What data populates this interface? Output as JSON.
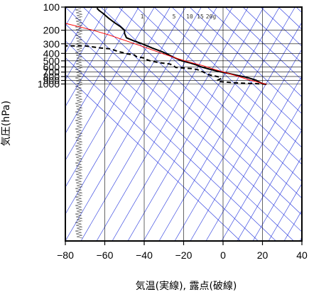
{
  "chart_data": {
    "type": "line",
    "title": "",
    "xlabel": "気温(実線), 露点(破線)",
    "ylabel": "気圧(hPa)",
    "xlim": [
      -80,
      40
    ],
    "ylim": [
      1050,
      100
    ],
    "y_scale": "log",
    "x_ticks": [
      -80,
      -60,
      -40,
      -20,
      0,
      20,
      40
    ],
    "x_tick_labels": [
      "−80",
      "−60",
      "−40",
      "−20",
      "0",
      "20",
      "40"
    ],
    "y_ticks": [
      100,
      200,
      300,
      400,
      500,
      600,
      700,
      800,
      900,
      1000
    ],
    "y_tick_labels": [
      "100",
      "200",
      "300",
      "400",
      "500",
      "600",
      "700",
      "800",
      "900",
      "1000"
    ],
    "mixing_ratio_labels": [
      "1",
      "5",
      "10",
      "15",
      "20g"
    ],
    "mixing_ratio_values": [
      1,
      5,
      10,
      15,
      20
    ],
    "colors": {
      "temperature": "#000000",
      "dewpoint": "#000000",
      "parcel": "#ff0000",
      "background_lines": "#2233dd"
    },
    "series": [
      {
        "name": "",
        "style": "solid",
        "points": [
          [
            22,
            1010
          ],
          [
            20,
            990
          ],
          [
            19,
            960
          ],
          [
            18,
            930
          ],
          [
            17,
            900
          ],
          [
            16,
            880
          ],
          [
            14,
            850
          ],
          [
            12,
            820
          ],
          [
            8,
            780
          ],
          [
            3,
            730
          ],
          [
            -2,
            690
          ],
          [
            -7,
            640
          ],
          [
            -11,
            600
          ],
          [
            -14,
            560
          ],
          [
            -17,
            530
          ],
          [
            -21,
            500
          ],
          [
            -25,
            450
          ],
          [
            -29,
            400
          ],
          [
            -31,
            380
          ],
          [
            -36,
            340
          ],
          [
            -41,
            300
          ],
          [
            -46,
            270
          ],
          [
            -49,
            250
          ],
          [
            -50,
            220
          ],
          [
            -50,
            200
          ],
          [
            -52,
            180
          ],
          [
            -55,
            160
          ],
          [
            -58,
            140
          ],
          [
            -61,
            120
          ],
          [
            -63,
            110
          ],
          [
            -64,
            103
          ]
        ]
      },
      {
        "name": "",
        "style": "dashed",
        "points": [
          [
            22,
            1010
          ],
          [
            20,
            1000
          ],
          [
            16,
            990
          ],
          [
            11,
            980
          ],
          [
            5,
            960
          ],
          [
            -2,
            930
          ],
          [
            -3,
            900
          ],
          [
            -1,
            850
          ],
          [
            -2,
            810
          ],
          [
            -3,
            800
          ],
          [
            -7,
            760
          ],
          [
            -10,
            700
          ],
          [
            -13,
            650
          ],
          [
            -16,
            630
          ],
          [
            -20,
            620
          ],
          [
            -24,
            610
          ],
          [
            -25,
            580
          ],
          [
            -27,
            550
          ],
          [
            -32,
            530
          ],
          [
            -37,
            500
          ],
          [
            -39,
            480
          ],
          [
            -40,
            460
          ],
          [
            -44,
            440
          ],
          [
            -45,
            420
          ],
          [
            -50,
            400
          ],
          [
            -51,
            390
          ],
          [
            -53,
            380
          ],
          [
            -57,
            350
          ],
          [
            -62,
            340
          ],
          [
            -70,
            320
          ],
          [
            -80,
            320
          ]
        ]
      },
      {
        "name": "",
        "style": "solid",
        "points": [
          [
            22,
            1010
          ],
          [
            18,
            950
          ],
          [
            13,
            880
          ],
          [
            8,
            800
          ],
          [
            2,
            720
          ],
          [
            -4,
            650
          ],
          [
            -10,
            580
          ],
          [
            -17,
            520
          ],
          [
            -24,
            460
          ],
          [
            -31,
            400
          ],
          [
            -40,
            330
          ],
          [
            -50,
            270
          ],
          [
            -58,
            230
          ],
          [
            -66,
            200
          ],
          [
            -73,
            180
          ],
          [
            -79,
            165
          ],
          [
            -80,
            163
          ]
        ]
      }
    ]
  }
}
